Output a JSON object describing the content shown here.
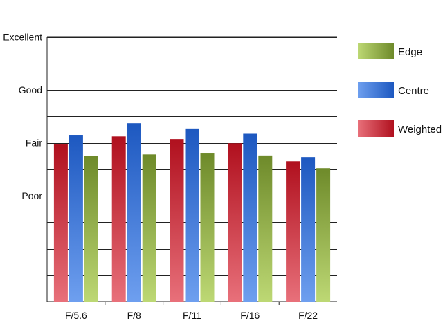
{
  "chart_data": {
    "type": "bar",
    "categories": [
      "F/5.6",
      "F/8",
      "F/11",
      "F/16",
      "F/22"
    ],
    "y_tick_labels": [
      {
        "value": 1,
        "label": "Poor"
      },
      {
        "value": 2,
        "label": "Fair"
      },
      {
        "value": 3,
        "label": "Good"
      },
      {
        "value": 4,
        "label": "Excellent"
      }
    ],
    "ylim": [
      -1,
      4
    ],
    "y_gridlines": [
      -0.5,
      0,
      0.5,
      1,
      1.5,
      2,
      2.5,
      3,
      3.5,
      4
    ],
    "series": [
      {
        "name": "Weighted",
        "values": [
          1.98,
          2.12,
          2.07,
          1.99,
          1.65
        ],
        "colors": {
          "light": "#e8707a",
          "dark": "#b0101e"
        }
      },
      {
        "name": "Centre",
        "values": [
          2.15,
          2.37,
          2.27,
          2.17,
          1.73
        ],
        "colors": {
          "light": "#6e9fef",
          "dark": "#1d58c0"
        }
      },
      {
        "name": "Edge",
        "values": [
          1.75,
          1.78,
          1.81,
          1.76,
          1.52
        ],
        "colors": {
          "light": "#bdd874",
          "dark": "#6e8a2a"
        }
      }
    ],
    "legend_order": [
      "Edge",
      "Centre",
      "Weighted"
    ],
    "legend_position": "right",
    "grid": true,
    "title": "",
    "xlabel": "",
    "ylabel": ""
  }
}
